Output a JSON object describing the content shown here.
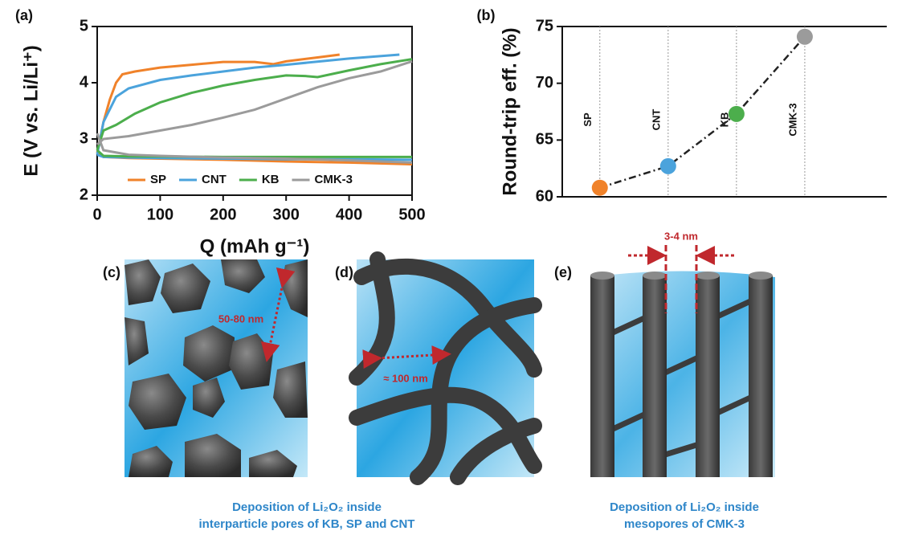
{
  "chart_data": [
    {
      "type": "line",
      "panel_label": "(a)",
      "x_label": "Q (mAh g⁻¹)",
      "y_label": "E (V vs. Li/Li⁺)",
      "xlim": [
        0,
        500
      ],
      "xticks": [
        0,
        100,
        200,
        300,
        400,
        500
      ],
      "ylim": [
        2,
        5
      ],
      "yticks": [
        2,
        3,
        4,
        5
      ],
      "legend": "bottom",
      "series": [
        {
          "name": "SP",
          "color": "#f0822a",
          "x": [
            0,
            10,
            50,
            100,
            200,
            300,
            400,
            500,
            null,
            0,
            10,
            20,
            30,
            40,
            60,
            100,
            150,
            200,
            250,
            280,
            300,
            350,
            385
          ],
          "values": [
            2.75,
            2.68,
            2.66,
            2.65,
            2.63,
            2.6,
            2.58,
            2.55,
            null,
            2.75,
            3.3,
            3.7,
            4.0,
            4.15,
            4.2,
            4.27,
            4.32,
            4.37,
            4.37,
            4.33,
            4.38,
            4.45,
            4.5
          ]
        },
        {
          "name": "CNT",
          "color": "#4ba3dc",
          "x": [
            0,
            10,
            50,
            100,
            200,
            300,
            400,
            500,
            null,
            0,
            10,
            30,
            50,
            100,
            150,
            200,
            250,
            300,
            400,
            480
          ],
          "values": [
            2.72,
            2.68,
            2.67,
            2.66,
            2.65,
            2.64,
            2.64,
            2.63,
            null,
            2.72,
            3.3,
            3.75,
            3.9,
            4.05,
            4.13,
            4.2,
            4.27,
            4.32,
            4.43,
            4.5
          ]
        },
        {
          "name": "KB",
          "color": "#4cae4c",
          "x": [
            0,
            10,
            50,
            100,
            200,
            300,
            400,
            500,
            null,
            0,
            10,
            30,
            60,
            100,
            150,
            200,
            250,
            300,
            330,
            350,
            400,
            450,
            500
          ],
          "values": [
            2.8,
            2.7,
            2.69,
            2.69,
            2.68,
            2.68,
            2.68,
            2.68,
            null,
            2.8,
            3.15,
            3.25,
            3.45,
            3.65,
            3.82,
            3.95,
            4.05,
            4.13,
            4.12,
            4.1,
            4.22,
            4.33,
            4.42
          ]
        },
        {
          "name": "CMK-3",
          "color": "#9b9b9b",
          "x": [
            0,
            10,
            50,
            100,
            200,
            300,
            400,
            500,
            null,
            0,
            10,
            50,
            100,
            150,
            200,
            250,
            300,
            350,
            400,
            450,
            500
          ],
          "values": [
            3.1,
            2.8,
            2.72,
            2.7,
            2.67,
            2.65,
            2.62,
            2.58,
            null,
            2.9,
            3.0,
            3.05,
            3.15,
            3.25,
            3.38,
            3.52,
            3.72,
            3.92,
            4.08,
            4.2,
            4.38
          ]
        }
      ]
    },
    {
      "type": "line",
      "panel_label": "(b)",
      "y_label": "Round-trip eff. (%)",
      "categories": [
        "SP",
        "CNT",
        "KB",
        "CMK-3"
      ],
      "values": [
        60.8,
        62.7,
        67.3,
        74.1
      ],
      "point_colors": [
        "#f0822a",
        "#4ba3dc",
        "#4cae4c",
        "#9b9b9b"
      ],
      "ylim": [
        60,
        75
      ],
      "yticks": [
        60,
        65,
        70,
        75
      ],
      "line_style": "dash-dot",
      "markers": true
    }
  ],
  "panels": {
    "c": {
      "label": "(c)",
      "dimension": "50-80 nm"
    },
    "d": {
      "label": "(d)",
      "dimension": "≈ 100 nm"
    },
    "e": {
      "label": "(e)",
      "dimension": "3-4 nm"
    }
  },
  "captions": [
    [
      "Deposition of Li₂O₂ inside",
      "interparticle pores of KB, SP and CNT"
    ],
    [
      "Deposition of Li₂O₂ inside",
      "mesopores of CMK-3"
    ]
  ]
}
